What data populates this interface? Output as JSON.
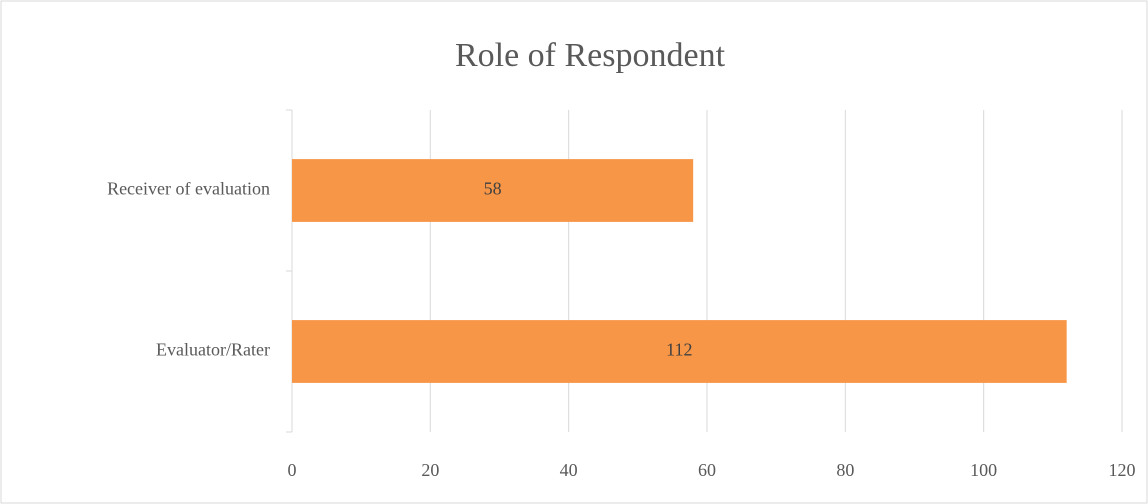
{
  "chart_data": {
    "type": "bar",
    "orientation": "horizontal",
    "title": "Role of Respondent",
    "categories": [
      "Receiver of evaluation",
      "Evaluator/Rater"
    ],
    "values": [
      58,
      112
    ],
    "color": "#f79646",
    "xlim": [
      0,
      120
    ],
    "xticks": [
      0,
      20,
      40,
      60,
      80,
      100,
      120
    ],
    "grid": true
  }
}
